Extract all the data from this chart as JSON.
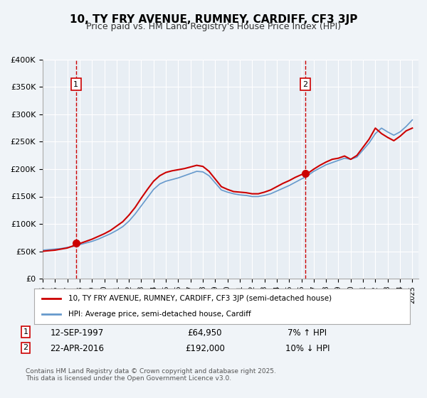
{
  "title": "10, TY FRY AVENUE, RUMNEY, CARDIFF, CF3 3JP",
  "subtitle": "Price paid vs. HM Land Registry's House Price Index (HPI)",
  "legend_label_red": "10, TY FRY AVENUE, RUMNEY, CARDIFF, CF3 3JP (semi-detached house)",
  "legend_label_blue": "HPI: Average price, semi-detached house, Cardiff",
  "annotation_1_date": "12-SEP-1997",
  "annotation_1_price": "£64,950",
  "annotation_1_hpi": "7% ↑ HPI",
  "annotation_2_date": "22-APR-2016",
  "annotation_2_price": "£192,000",
  "annotation_2_hpi": "10% ↓ HPI",
  "footer": "Contains HM Land Registry data © Crown copyright and database right 2025.\nThis data is licensed under the Open Government Licence v3.0.",
  "background_color": "#f0f4f8",
  "plot_bg_color": "#e8eef4",
  "red_color": "#cc0000",
  "blue_color": "#6699cc",
  "vline_color": "#cc0000",
  "grid_color": "#ffffff",
  "ylim": [
    0,
    400000
  ],
  "xlim_start": 1995.0,
  "xlim_end": 2025.5,
  "marker1_x": 1997.7,
  "marker1_y": 64950,
  "marker2_x": 2016.3,
  "marker2_y": 192000,
  "vline1_x": 1997.7,
  "vline2_x": 2016.3
}
